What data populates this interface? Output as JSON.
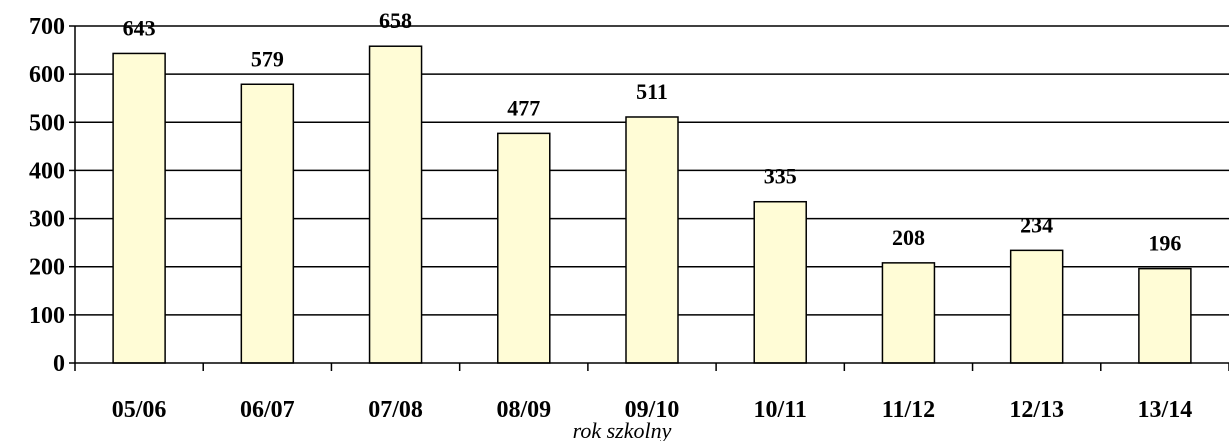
{
  "chart_data": {
    "type": "bar",
    "title": "",
    "xlabel": "rok szkolny",
    "ylabel": "",
    "categories": [
      "05/06",
      "06/07",
      "07/08",
      "08/09",
      "09/10",
      "10/11",
      "11/12",
      "12/13",
      "13/14"
    ],
    "values": [
      643,
      579,
      658,
      477,
      511,
      335,
      208,
      234,
      196
    ],
    "ylim": [
      0,
      700
    ],
    "yticks": [
      0,
      100,
      200,
      300,
      400,
      500,
      600,
      700
    ],
    "grid": true,
    "legend": "none",
    "colors": {
      "bar_fill": "#FFFCD6",
      "bar_stroke": "#000000",
      "grid": "#000000"
    }
  }
}
